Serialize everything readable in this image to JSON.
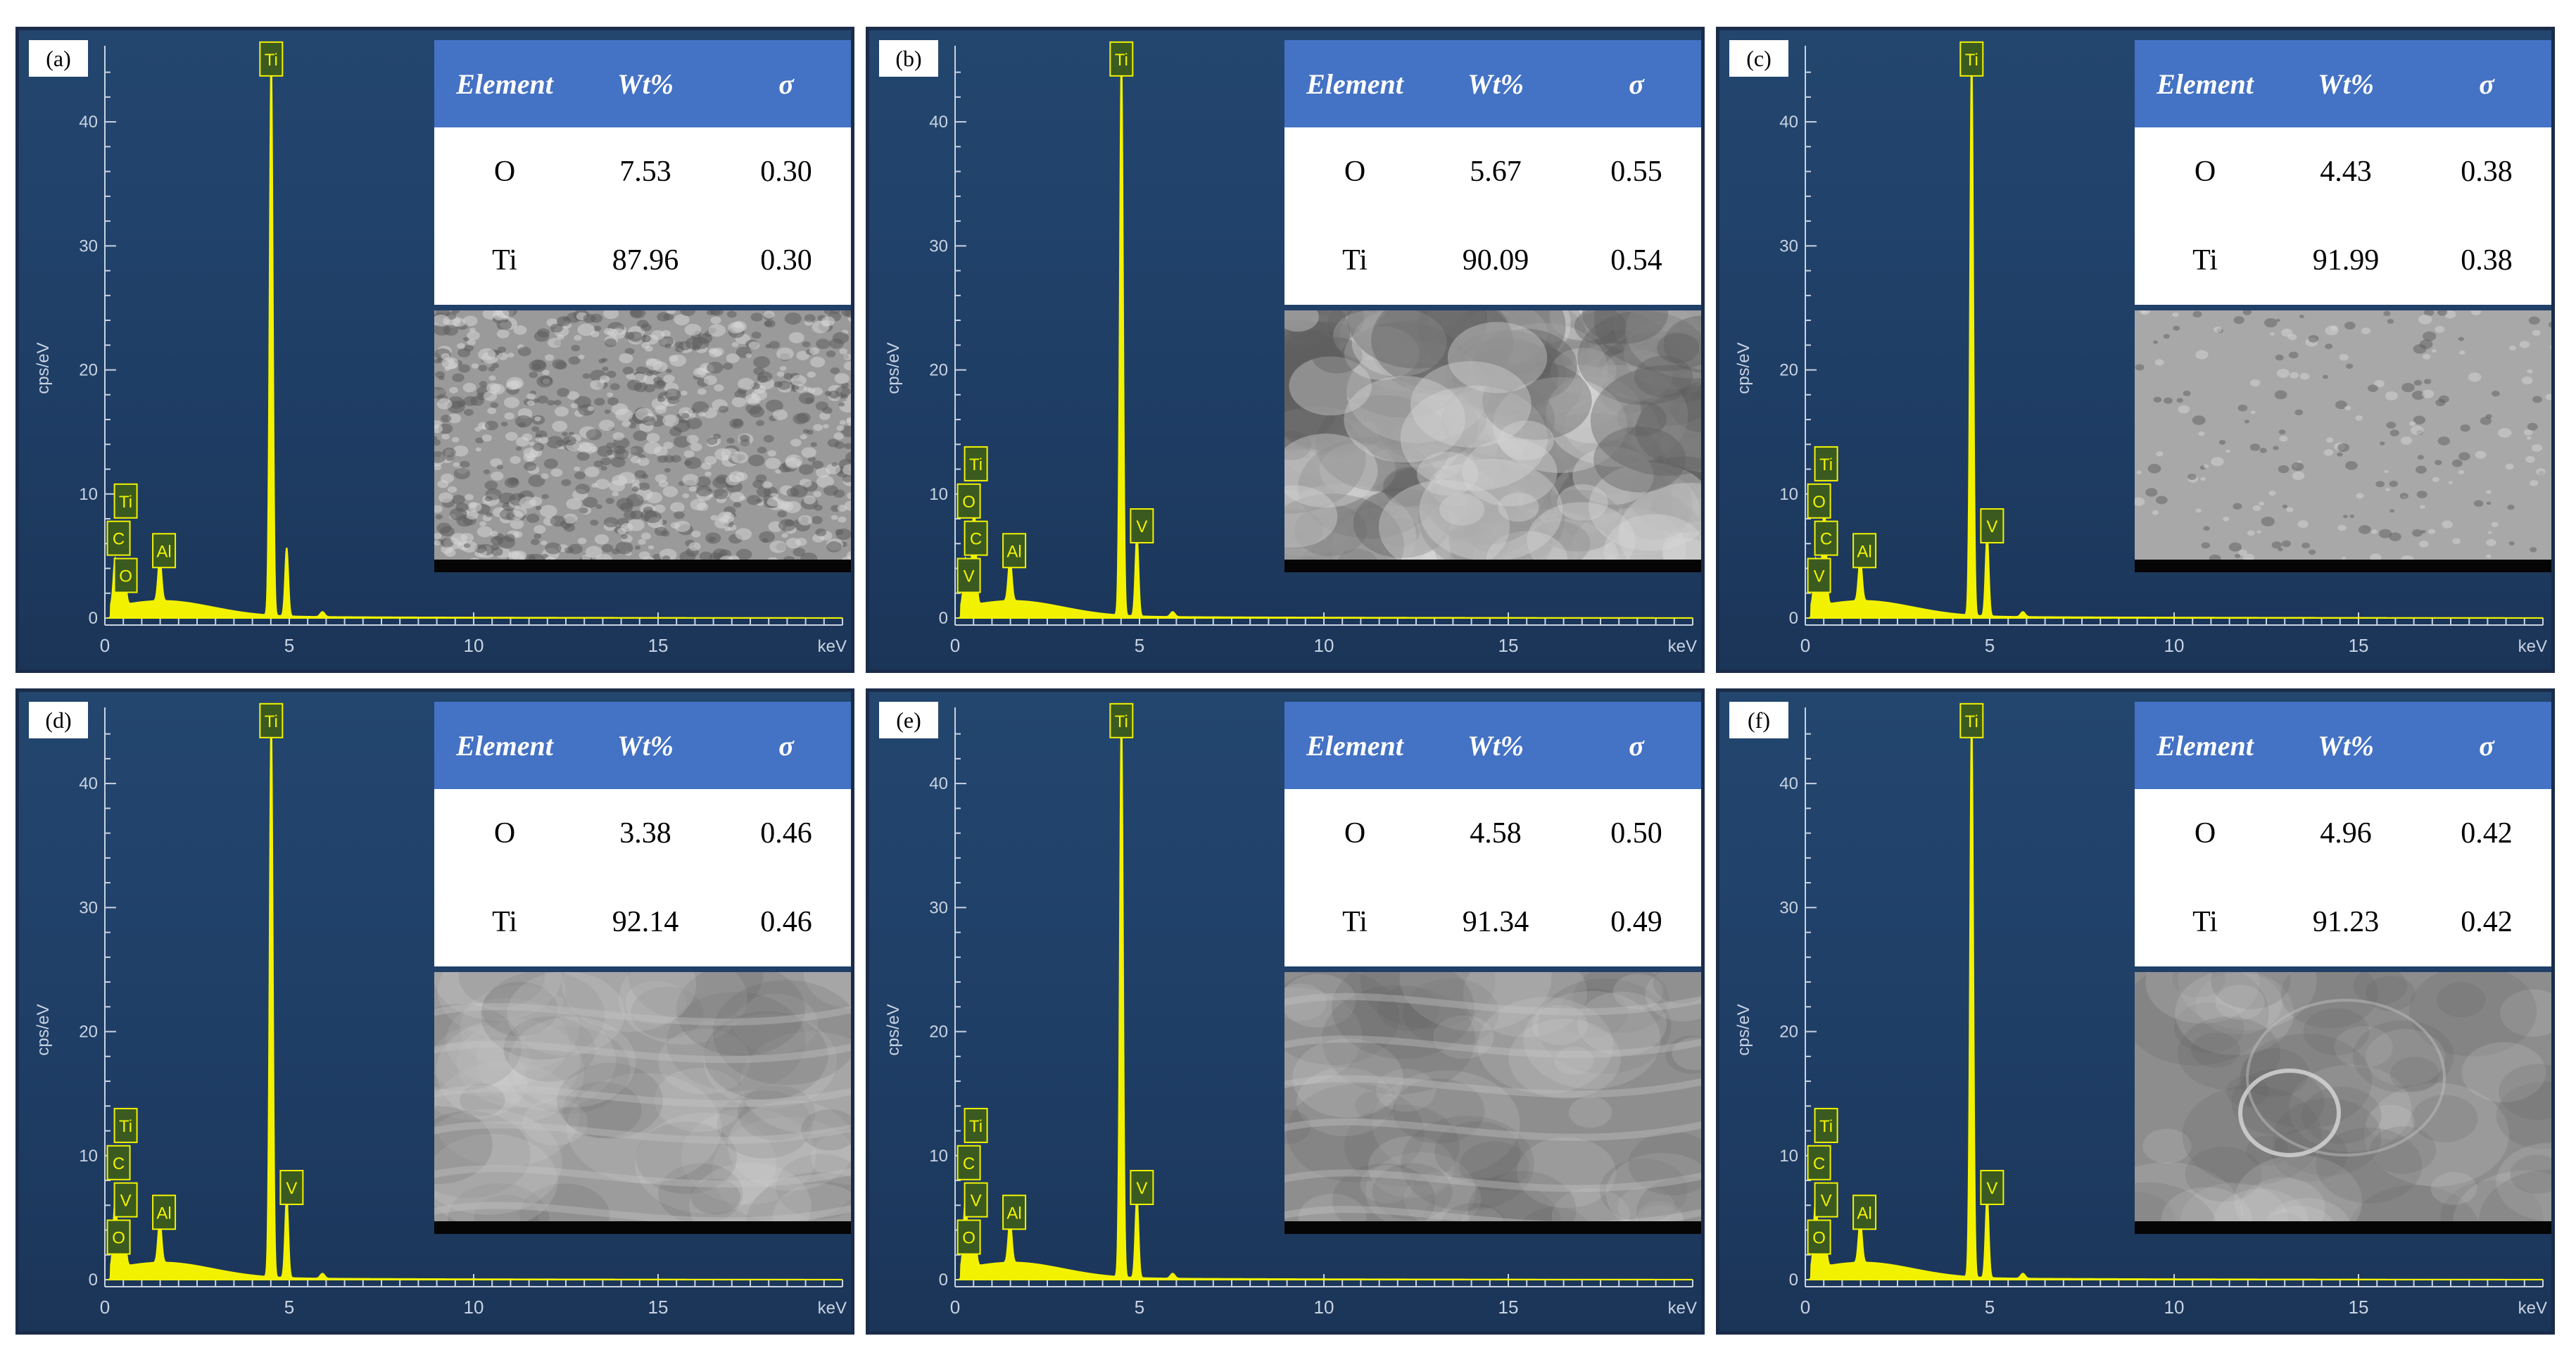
{
  "chart_data": [
    {
      "panel": "(a)",
      "type": "line",
      "ylabel": "cps/eV",
      "xunit": "keV",
      "xlim": [
        0,
        20
      ],
      "ylim": [
        0,
        45
      ],
      "x_ticks": [
        0,
        5,
        10,
        15
      ],
      "y_ticks": [
        0,
        10,
        20,
        30,
        40
      ],
      "peaks": [
        {
          "label": "Ti",
          "keV": 4.51,
          "cps": 45
        },
        {
          "label": "Ti",
          "keV": 0.45,
          "cps": 10
        },
        {
          "label": "C",
          "keV": 0.28,
          "cps": 7
        },
        {
          "label": "O",
          "keV": 0.52,
          "cps": 4
        },
        {
          "label": "Al",
          "keV": 1.49,
          "cps": 6
        }
      ],
      "table": {
        "headers": [
          "Element",
          "Wt%",
          "σ"
        ],
        "rows": [
          [
            "O",
            "7.53",
            "0.30"
          ],
          [
            "Ti",
            "87.96",
            "0.30"
          ]
        ]
      },
      "sem": "rough"
    },
    {
      "panel": "(b)",
      "type": "line",
      "ylabel": "cps/eV",
      "xunit": "keV",
      "xlim": [
        0,
        20
      ],
      "ylim": [
        0,
        45
      ],
      "x_ticks": [
        0,
        5,
        10,
        15
      ],
      "y_ticks": [
        0,
        10,
        20,
        30,
        40
      ],
      "peaks": [
        {
          "label": "Ti",
          "keV": 4.51,
          "cps": 45
        },
        {
          "label": "Ti",
          "keV": 0.45,
          "cps": 13
        },
        {
          "label": "O",
          "keV": 0.52,
          "cps": 10
        },
        {
          "label": "C",
          "keV": 0.28,
          "cps": 7
        },
        {
          "label": "V",
          "keV": 0.51,
          "cps": 4
        },
        {
          "label": "Al",
          "keV": 1.49,
          "cps": 6
        },
        {
          "label": "V",
          "keV": 4.95,
          "cps": 8
        }
      ],
      "table": {
        "headers": [
          "Element",
          "Wt%",
          "σ"
        ],
        "rows": [
          [
            "O",
            "5.67",
            "0.55"
          ],
          [
            "Ti",
            "90.09",
            "0.54"
          ]
        ]
      },
      "sem": "medium"
    },
    {
      "panel": "(c)",
      "type": "line",
      "ylabel": "cps/eV",
      "xunit": "keV",
      "xlim": [
        0,
        20
      ],
      "ylim": [
        0,
        45
      ],
      "x_ticks": [
        0,
        5,
        10,
        15
      ],
      "y_ticks": [
        0,
        10,
        20,
        30,
        40
      ],
      "peaks": [
        {
          "label": "Ti",
          "keV": 4.51,
          "cps": 45
        },
        {
          "label": "Ti",
          "keV": 0.45,
          "cps": 13
        },
        {
          "label": "O",
          "keV": 0.52,
          "cps": 10
        },
        {
          "label": "C",
          "keV": 0.28,
          "cps": 7
        },
        {
          "label": "V",
          "keV": 0.51,
          "cps": 4
        },
        {
          "label": "Al",
          "keV": 1.49,
          "cps": 6
        },
        {
          "label": "V",
          "keV": 4.95,
          "cps": 8
        }
      ],
      "table": {
        "headers": [
          "Element",
          "Wt%",
          "σ"
        ],
        "rows": [
          [
            "O",
            "4.43",
            "0.38"
          ],
          [
            "Ti",
            "91.99",
            "0.38"
          ]
        ]
      },
      "sem": "pitted"
    },
    {
      "panel": "(d)",
      "type": "line",
      "ylabel": "cps/eV",
      "xunit": "keV",
      "xlim": [
        0,
        20
      ],
      "ylim": [
        0,
        45
      ],
      "x_ticks": [
        0,
        5,
        10,
        15
      ],
      "y_ticks": [
        0,
        10,
        20,
        30,
        40
      ],
      "peaks": [
        {
          "label": "Ti",
          "keV": 4.51,
          "cps": 45
        },
        {
          "label": "Ti",
          "keV": 0.45,
          "cps": 13
        },
        {
          "label": "C",
          "keV": 0.28,
          "cps": 10
        },
        {
          "label": "V",
          "keV": 0.51,
          "cps": 7
        },
        {
          "label": "O",
          "keV": 0.52,
          "cps": 4
        },
        {
          "label": "Al",
          "keV": 1.49,
          "cps": 6
        },
        {
          "label": "V",
          "keV": 4.95,
          "cps": 8
        }
      ],
      "table": {
        "headers": [
          "Element",
          "Wt%",
          "σ"
        ],
        "rows": [
          [
            "O",
            "3.38",
            "0.46"
          ],
          [
            "Ti",
            "92.14",
            "0.46"
          ]
        ]
      },
      "sem": "smooth"
    },
    {
      "panel": "(e)",
      "type": "line",
      "ylabel": "cps/eV",
      "xunit": "keV",
      "xlim": [
        0,
        20
      ],
      "ylim": [
        0,
        45
      ],
      "x_ticks": [
        0,
        5,
        10,
        15
      ],
      "y_ticks": [
        0,
        10,
        20,
        30,
        40
      ],
      "peaks": [
        {
          "label": "Ti",
          "keV": 4.51,
          "cps": 45
        },
        {
          "label": "Ti",
          "keV": 0.45,
          "cps": 13
        },
        {
          "label": "C",
          "keV": 0.28,
          "cps": 10
        },
        {
          "label": "V",
          "keV": 0.51,
          "cps": 7
        },
        {
          "label": "O",
          "keV": 0.52,
          "cps": 4
        },
        {
          "label": "Al",
          "keV": 1.49,
          "cps": 6
        },
        {
          "label": "V",
          "keV": 4.95,
          "cps": 8
        }
      ],
      "table": {
        "headers": [
          "Element",
          "Wt%",
          "σ"
        ],
        "rows": [
          [
            "O",
            "4.58",
            "0.50"
          ],
          [
            "Ti",
            "91.34",
            "0.49"
          ]
        ]
      },
      "sem": "wavy"
    },
    {
      "panel": "(f)",
      "type": "line",
      "ylabel": "cps/eV",
      "xunit": "keV",
      "xlim": [
        0,
        20
      ],
      "ylim": [
        0,
        45
      ],
      "x_ticks": [
        0,
        5,
        10,
        15
      ],
      "y_ticks": [
        0,
        10,
        20,
        30,
        40
      ],
      "peaks": [
        {
          "label": "Ti",
          "keV": 4.51,
          "cps": 45
        },
        {
          "label": "Ti",
          "keV": 0.45,
          "cps": 13
        },
        {
          "label": "C",
          "keV": 0.28,
          "cps": 10
        },
        {
          "label": "V",
          "keV": 0.51,
          "cps": 7
        },
        {
          "label": "O",
          "keV": 0.52,
          "cps": 4
        },
        {
          "label": "Al",
          "keV": 1.49,
          "cps": 6
        },
        {
          "label": "V",
          "keV": 4.95,
          "cps": 8
        }
      ],
      "table": {
        "headers": [
          "Element",
          "Wt%",
          "σ"
        ],
        "rows": [
          [
            "O",
            "4.96",
            "0.42"
          ],
          [
            "Ti",
            "91.23",
            "0.42"
          ]
        ]
      },
      "sem": "crater"
    }
  ],
  "colors": {
    "background": "#203f66",
    "spectrum": "#f2f200",
    "axis": "#c9d3e2",
    "table_header": "#4472c4"
  }
}
